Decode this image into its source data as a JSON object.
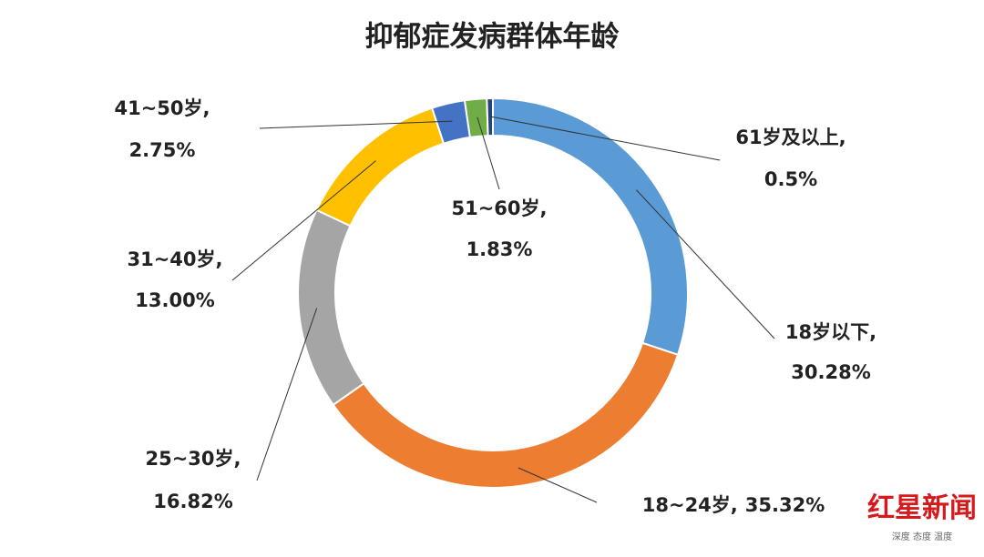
{
  "chart_data": {
    "type": "pie",
    "donut": true,
    "title": "抑郁症发病群体年龄",
    "categories": [
      "18岁以下,",
      "18~24岁,",
      "25~30岁,",
      "31~40岁,",
      "41~50岁,",
      "51~60岁,",
      "61岁及以上,"
    ],
    "values": [
      30.28,
      35.32,
      16.82,
      13.0,
      2.75,
      1.83,
      0.5
    ],
    "value_labels": [
      "30.28%",
      "35.32%",
      "16.82%",
      "13.00%",
      "2.75%",
      "1.83%",
      "0.5%"
    ],
    "colors": [
      "#5b9bd5",
      "#ed7d31",
      "#a5a5a5",
      "#ffc000",
      "#4472c4",
      "#70ad47",
      "#264478"
    ]
  },
  "watermark": {
    "logo": "红星新闻",
    "slogan": "深度 态度 温度"
  }
}
